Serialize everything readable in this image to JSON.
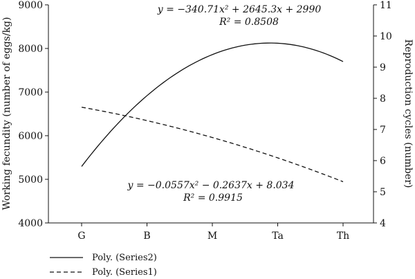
{
  "chart_data": {
    "type": "line",
    "categories": [
      "G",
      "B",
      "M",
      "Ta",
      "Th"
    ],
    "left_axis": {
      "label": "Working fecundity (number of eggs/kg)",
      "ylim": [
        4000,
        9000
      ],
      "ticks": [
        "4000",
        "5000",
        "6000",
        "7000",
        "8000",
        "9000"
      ]
    },
    "right_axis": {
      "label": "Reproduction cycles (number)",
      "ylim": [
        4,
        11
      ],
      "ticks": [
        "4",
        "5",
        "6",
        "7",
        "8",
        "9",
        "10",
        "11"
      ]
    },
    "series": [
      {
        "name": "Poly. (Series2)",
        "axis": "left",
        "style": "solid",
        "equation": "y = −340.71x² + 2645.3x + 2990",
        "r2": "R² = 0.8508",
        "coefficients": [
          -340.71,
          2645.3,
          2990
        ]
      },
      {
        "name": "Poly. (Series1)",
        "axis": "right",
        "style": "dashed",
        "equation": "y = −0.0557x² − 0.2637x + 8.034",
        "r2": "R² = 0.9915",
        "coefficients": [
          -0.0557,
          -0.2637,
          8.034
        ]
      }
    ],
    "grid": false,
    "legend_placement": "bottom-left"
  },
  "equations": {
    "series2_eq_label": "y = −340.71x² + 2645.3x + 2990",
    "series2_r2_label": "R² = 0.8508",
    "series1_eq_label": "y = −0.0557x² − 0.2637x + 8.034",
    "series1_r2_label": "R² = 0.9915"
  },
  "legend": {
    "series2_label": "Poly. (Series2)",
    "series1_label": "Poly. (Series1)"
  },
  "colors": {
    "line": "#111111",
    "axis": "#111111"
  }
}
